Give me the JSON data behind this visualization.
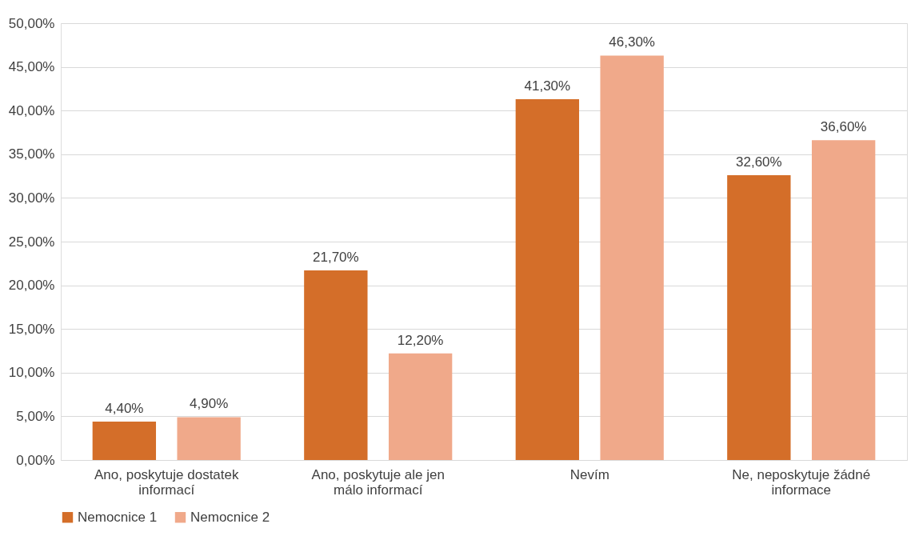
{
  "chart_data": {
    "type": "bar",
    "categories": [
      "Ano, poskytuje dostatek informací",
      "Ano, poskytuje ale jen málo informací",
      "Nevím",
      "Ne, neposkytuje žádné informace"
    ],
    "series": [
      {
        "name": "Nemocnice 1",
        "color": "#d46e29",
        "values": [
          4.4,
          21.7,
          41.3,
          32.6
        ],
        "value_labels": [
          "4,40%",
          "21,70%",
          "41,30%",
          "32,60%"
        ]
      },
      {
        "name": "Nemocnice 2",
        "color": "#f0a98a",
        "values": [
          4.9,
          12.2,
          46.3,
          36.6
        ],
        "value_labels": [
          "4,90%",
          "12,20%",
          "46,30%",
          "36,60%"
        ]
      }
    ],
    "ylim": [
      0,
      50
    ],
    "yticks": [
      {
        "value": 0,
        "label": "0,00%"
      },
      {
        "value": 5,
        "label": "5,00%"
      },
      {
        "value": 10,
        "label": "10,00%"
      },
      {
        "value": 15,
        "label": "15,00%"
      },
      {
        "value": 20,
        "label": "20,00%"
      },
      {
        "value": 25,
        "label": "25,00%"
      },
      {
        "value": 30,
        "label": "30,00%"
      },
      {
        "value": 35,
        "label": "35,00%"
      },
      {
        "value": 40,
        "label": "40,00%"
      },
      {
        "value": 45,
        "label": "45,00%"
      },
      {
        "value": 50,
        "label": "50,00%"
      }
    ],
    "grid": "y",
    "legend": "bottom"
  }
}
